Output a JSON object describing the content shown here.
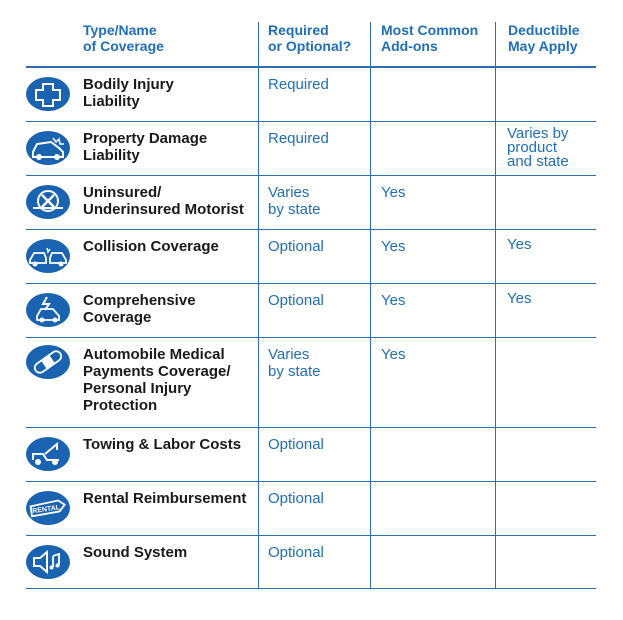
{
  "headers": {
    "type": "Type/Name\nof Coverage",
    "required": "Required\nor Optional?",
    "addons": "Most Common\nAdd-ons",
    "deductible": "Deductible\nMay Apply"
  },
  "rows": [
    {
      "icon": "medical-cross-icon",
      "name": "Bodily Injury\nLiability",
      "required": "Required",
      "addons": "",
      "deductible": ""
    },
    {
      "icon": "car-damage-icon",
      "name": "Property Damage\nLiability",
      "required": "Required",
      "addons": "",
      "deductible": "Varies by\nproduct\nand state"
    },
    {
      "icon": "uninsured-car-icon",
      "name": "Uninsured/\nUnderinsured Motorist",
      "required": "Varies\nby state",
      "addons": "Yes",
      "deductible": ""
    },
    {
      "icon": "collision-icon",
      "name": "Collision Coverage",
      "required": "Optional",
      "addons": "Yes",
      "deductible": "Yes"
    },
    {
      "icon": "comprehensive-icon",
      "name": "Comprehensive\nCoverage",
      "required": "Optional",
      "addons": "Yes",
      "deductible": "Yes"
    },
    {
      "icon": "bandage-icon",
      "name": "Automobile Medical\nPayments Coverage/\nPersonal Injury\nProtection",
      "required": "Varies\nby state",
      "addons": "Yes",
      "deductible": ""
    },
    {
      "icon": "tow-truck-icon",
      "name": "Towing & Labor Costs",
      "required": "Optional",
      "addons": "",
      "deductible": ""
    },
    {
      "icon": "rental-tag-icon",
      "name": "Rental Reimbursement",
      "required": "Optional",
      "addons": "",
      "deductible": ""
    },
    {
      "icon": "speaker-icon",
      "name": "Sound System",
      "required": "Optional",
      "addons": "",
      "deductible": ""
    }
  ],
  "icon_text": {
    "rental": "RENTAL"
  },
  "colors": {
    "accent": "#1f6fb8",
    "icon_bg": "#1a63b0",
    "text": "#1a1a1a",
    "rule": "#2f6fb0"
  }
}
